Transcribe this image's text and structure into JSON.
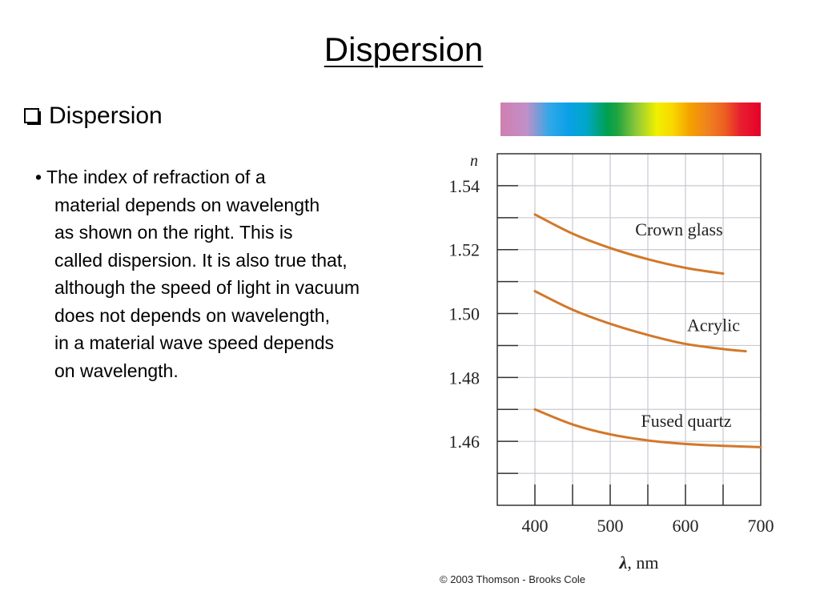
{
  "slide": {
    "title": "Dispersion",
    "heading": "Dispersion",
    "bullet_lines": [
      "• The index of refraction of a",
      "material depends on wavelength",
      "as shown on the right. This is",
      "called dispersion. It is also true that,",
      "although the speed of light in vacuum",
      "does not depends on wavelength,",
      "in a material wave speed depends",
      "on wavelength."
    ],
    "copyright": "© 2003 Thomson - Brooks Cole"
  },
  "chart_data": {
    "type": "line",
    "ylabel": "n",
    "xlabel_symbol": "λ",
    "xlabel_unit": ", nm",
    "xlim": [
      350,
      700
    ],
    "ylim": [
      1.44,
      1.55
    ],
    "x_ticks": [
      400,
      500,
      600,
      700
    ],
    "y_ticks": [
      1.54,
      1.52,
      1.5,
      1.48,
      1.46
    ],
    "y_tick_labels": [
      "1.54",
      "1.52",
      "1.50",
      "1.48",
      "1.46"
    ],
    "grid": true,
    "line_color": "#d2782a",
    "series": [
      {
        "name": "Crown glass",
        "x": [
          400,
          450,
          500,
          550,
          600,
          650
        ],
        "y": [
          1.531,
          1.525,
          1.5205,
          1.517,
          1.5143,
          1.5125
        ]
      },
      {
        "name": "Acrylic",
        "x": [
          400,
          450,
          500,
          550,
          600,
          650,
          680
        ],
        "y": [
          1.507,
          1.5012,
          1.4968,
          1.4933,
          1.4905,
          1.4889,
          1.4882
        ]
      },
      {
        "name": "Fused quartz",
        "x": [
          400,
          450,
          500,
          550,
          600,
          650,
          700
        ],
        "y": [
          1.47,
          1.4653,
          1.4622,
          1.4603,
          1.4592,
          1.4586,
          1.4582
        ]
      }
    ]
  }
}
